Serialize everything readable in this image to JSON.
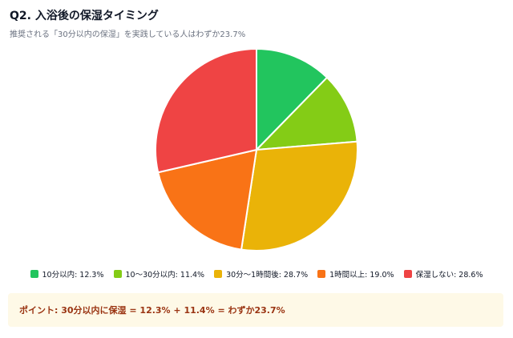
{
  "header": {
    "title": "Q2. 入浴後の保湿タイミング",
    "subtitle": "推奨される「30分以内の保湿」を実践している人はわずか23.7%"
  },
  "legend": [
    {
      "label": "10分以内: 12.3%",
      "color": "#22c55e"
    },
    {
      "label": "10〜30分以内: 11.4%",
      "color": "#84cc16"
    },
    {
      "label": "30分〜1時間後: 28.7%",
      "color": "#eab308"
    },
    {
      "label": "1時間以上: 19.0%",
      "color": "#f97316"
    },
    {
      "label": "保湿しない: 28.6%",
      "color": "#ef4444"
    }
  ],
  "note": {
    "text": "ポイント: 30分以内に保湿 = 12.3% + 11.4% = わずか23.7%"
  },
  "chart_data": {
    "type": "pie",
    "title": "Q2. 入浴後の保湿タイミング",
    "subtitle": "推奨される「30分以内の保湿」を実践している人はわずか23.7%",
    "categories": [
      "10分以内",
      "10〜30分以内",
      "30分〜1時間後",
      "1時間以上",
      "保湿しない"
    ],
    "values": [
      12.3,
      11.4,
      28.7,
      19.0,
      28.6
    ],
    "colors": [
      "#22c55e",
      "#84cc16",
      "#eab308",
      "#f97316",
      "#ef4444"
    ],
    "unit": "%",
    "legend_position": "bottom"
  }
}
